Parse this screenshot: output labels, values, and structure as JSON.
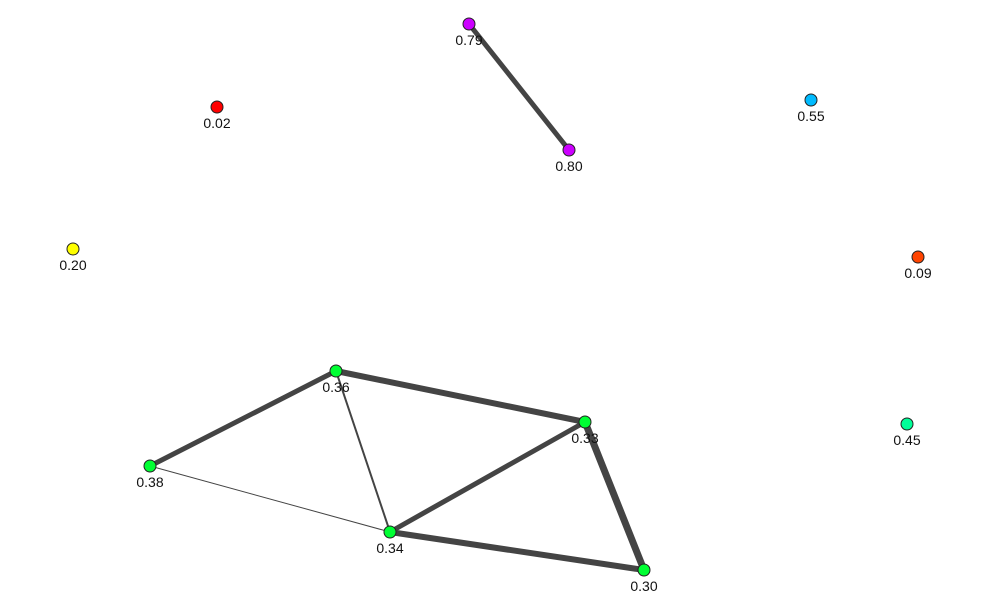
{
  "graph": {
    "edge_color": "#444444",
    "node_stroke": "#222222",
    "nodes": [
      {
        "id": "n079",
        "label": "0.79",
        "color": "#cc00ff"
      },
      {
        "id": "n080",
        "label": "0.80",
        "color": "#cc00ff"
      },
      {
        "id": "n002",
        "label": "0.02",
        "color": "#ff0000"
      },
      {
        "id": "n055",
        "label": "0.55",
        "color": "#00bbff"
      },
      {
        "id": "n020",
        "label": "0.20",
        "color": "#ffff00"
      },
      {
        "id": "n009",
        "label": "0.09",
        "color": "#ff4400"
      },
      {
        "id": "n036",
        "label": "0.36",
        "color": "#00ff33"
      },
      {
        "id": "n033",
        "label": "0.33",
        "color": "#00ff33"
      },
      {
        "id": "n045",
        "label": "0.45",
        "color": "#00ff99"
      },
      {
        "id": "n038",
        "label": "0.38",
        "color": "#00ff33"
      },
      {
        "id": "n034",
        "label": "0.34",
        "color": "#00ff33"
      },
      {
        "id": "n030",
        "label": "0.30",
        "color": "#00ff33"
      }
    ],
    "edges": [
      {
        "source": "n079",
        "target": "n080",
        "weight": 5
      },
      {
        "source": "n038",
        "target": "n036",
        "weight": 5
      },
      {
        "source": "n036",
        "target": "n033",
        "weight": 6
      },
      {
        "source": "n036",
        "target": "n034",
        "weight": 2
      },
      {
        "source": "n038",
        "target": "n034",
        "weight": 1
      },
      {
        "source": "n034",
        "target": "n033",
        "weight": 5
      },
      {
        "source": "n034",
        "target": "n030",
        "weight": 6
      },
      {
        "source": "n033",
        "target": "n030",
        "weight": 7
      }
    ]
  }
}
